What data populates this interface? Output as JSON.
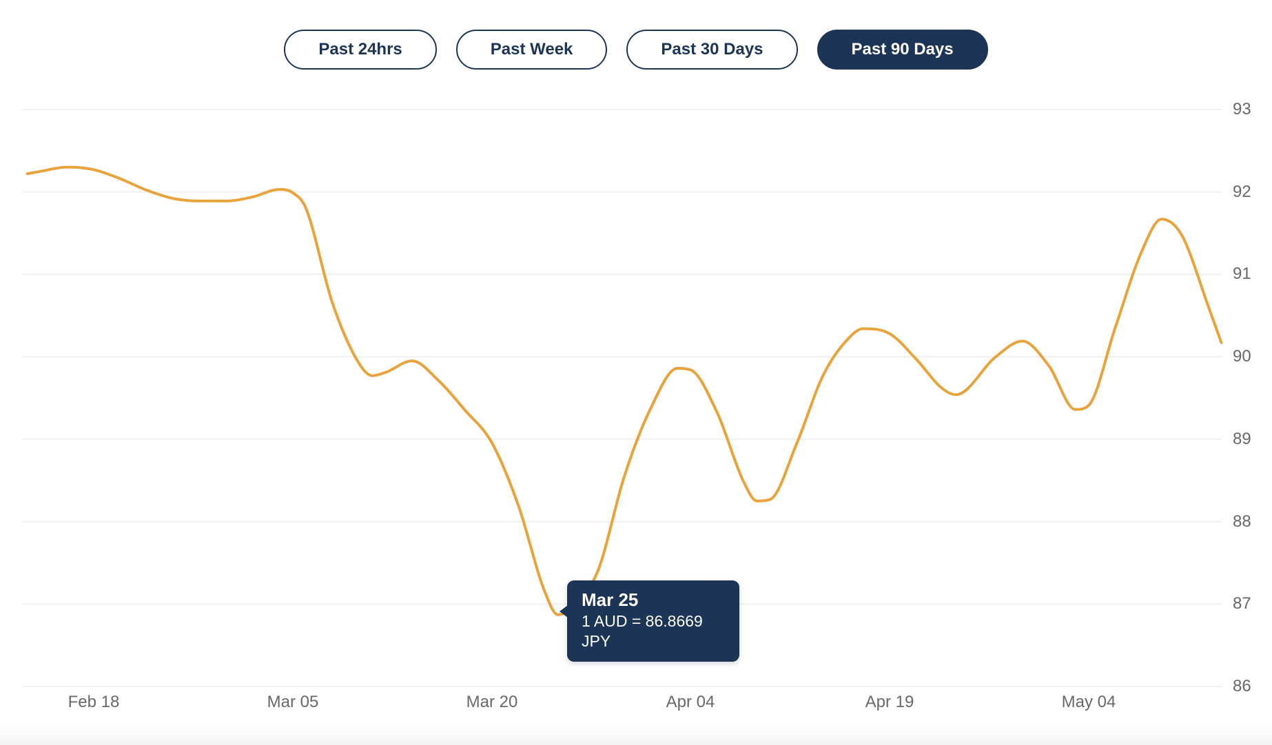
{
  "period_selector": {
    "buttons": [
      {
        "label": "Past 24hrs",
        "active": false
      },
      {
        "label": "Past Week",
        "active": false
      },
      {
        "label": "Past 30 Days",
        "active": false
      },
      {
        "label": "Past 90 Days",
        "active": true
      }
    ]
  },
  "tooltip": {
    "title": "Mar 25",
    "value": "1 AUD = 86.8669 JPY"
  },
  "colors": {
    "accent_line": "#E8A33C",
    "navy": "#1C3456",
    "grid": "#F0F0F1",
    "axis_text": "#66686C"
  },
  "chart_data": {
    "type": "line",
    "series": [
      {
        "name": "1 AUD in JPY",
        "points_day_value": [
          [
            0,
            92.22
          ],
          [
            1,
            92.25
          ],
          [
            3,
            92.3
          ],
          [
            5,
            92.27
          ],
          [
            7,
            92.16
          ],
          [
            9,
            92.02
          ],
          [
            11,
            91.92
          ],
          [
            13,
            91.89
          ],
          [
            15,
            91.89
          ],
          [
            17,
            91.94
          ],
          [
            19,
            92.03
          ],
          [
            20,
            91.99
          ],
          [
            21,
            91.8
          ],
          [
            23,
            90.65
          ],
          [
            25,
            89.92
          ],
          [
            26,
            89.77
          ],
          [
            27,
            89.81
          ],
          [
            29,
            89.95
          ],
          [
            31,
            89.71
          ],
          [
            33,
            89.35
          ],
          [
            35,
            88.96
          ],
          [
            37,
            88.2
          ],
          [
            39,
            87.15
          ],
          [
            40,
            86.87
          ],
          [
            41,
            86.95
          ],
          [
            43,
            87.4
          ],
          [
            45,
            88.55
          ],
          [
            47,
            89.38
          ],
          [
            49,
            89.86
          ],
          [
            50,
            89.84
          ],
          [
            52,
            89.32
          ],
          [
            54,
            88.48
          ],
          [
            55,
            88.25
          ],
          [
            56,
            88.27
          ],
          [
            58,
            88.95
          ],
          [
            60,
            89.78
          ],
          [
            62,
            90.24
          ],
          [
            63,
            90.34
          ],
          [
            65,
            90.28
          ],
          [
            67,
            89.97
          ],
          [
            69,
            89.61
          ],
          [
            70,
            89.54
          ],
          [
            73,
            90.0
          ],
          [
            75,
            90.19
          ],
          [
            77,
            89.89
          ],
          [
            79,
            89.36
          ],
          [
            80,
            89.41
          ],
          [
            82,
            90.35
          ],
          [
            84,
            91.28
          ],
          [
            85.5,
            91.67
          ],
          [
            87,
            91.48
          ],
          [
            89,
            90.62
          ],
          [
            90,
            90.17
          ]
        ]
      }
    ],
    "x_axis": {
      "tick_labels": [
        "Feb 18",
        "Mar 05",
        "Mar 20",
        "Apr 04",
        "Apr 19",
        "May 04"
      ],
      "tick_days": [
        5,
        20,
        35,
        50,
        65,
        80
      ],
      "range_days": [
        0,
        90
      ]
    },
    "y_axis": {
      "ticks": [
        86,
        87,
        88,
        89,
        90,
        91,
        92,
        93
      ],
      "range": [
        86,
        93
      ],
      "side": "right"
    },
    "grid": "horizontal-only",
    "legend": "none",
    "highlight": {
      "date": "Mar 25",
      "value": 86.8669,
      "day": 40
    }
  }
}
